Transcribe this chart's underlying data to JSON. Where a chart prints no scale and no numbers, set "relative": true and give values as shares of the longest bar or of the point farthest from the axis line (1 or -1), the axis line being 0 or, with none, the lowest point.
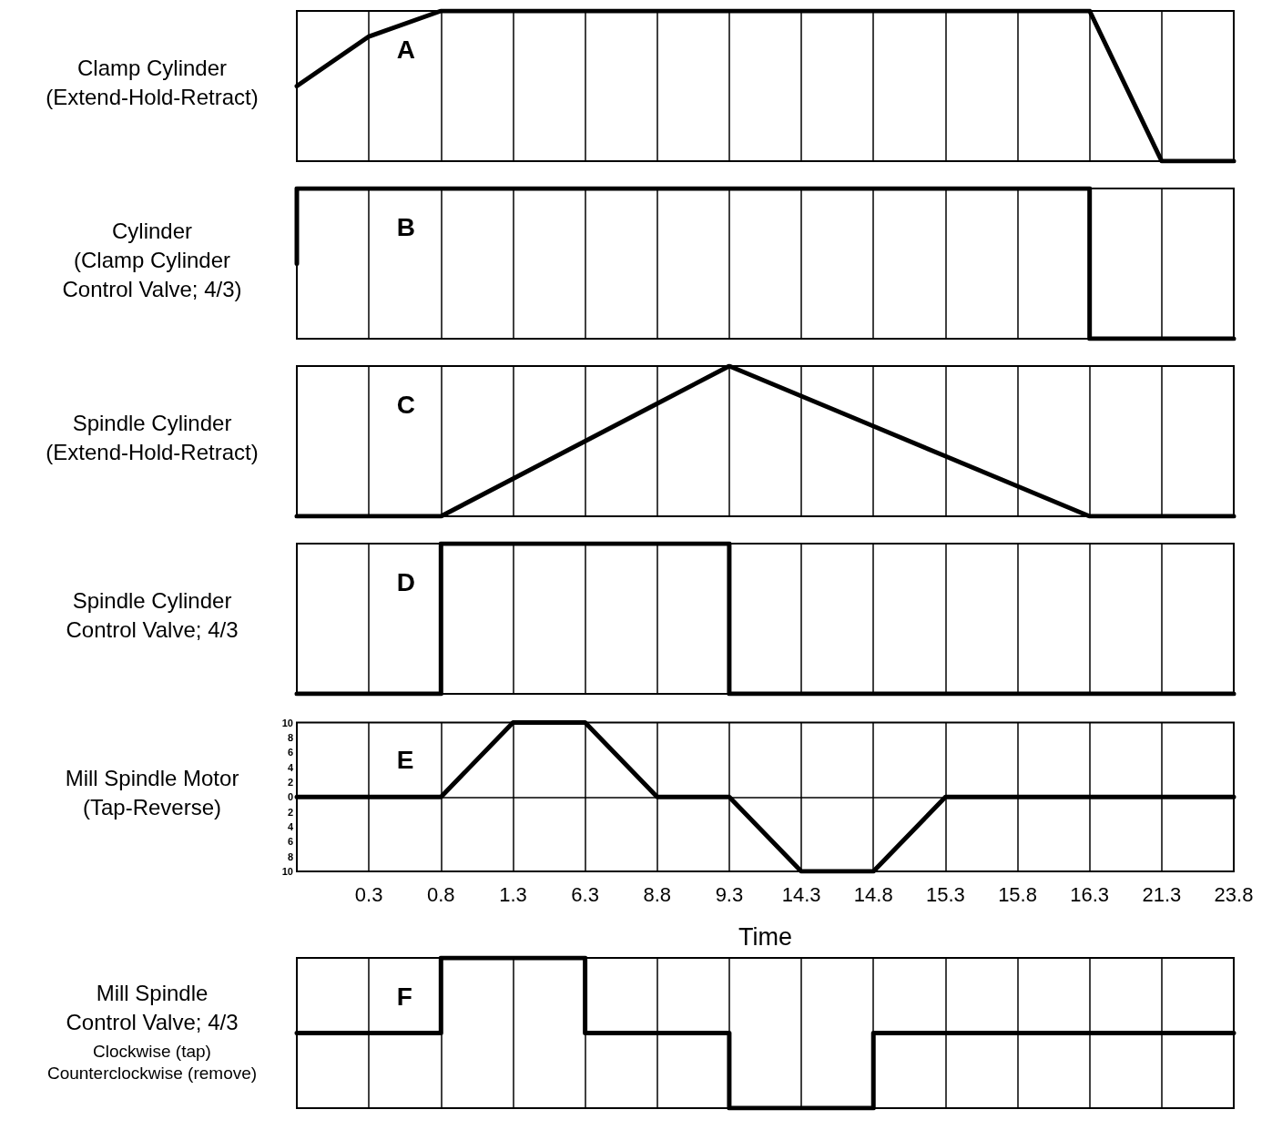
{
  "chart_data": [
    {
      "type": "line",
      "ylabel": "Clamp Cylinder\n(Extend-Hold-Retract)",
      "annotations": [
        "A"
      ],
      "relative": true,
      "grid": true,
      "tick_labels": false,
      "categories": [
        null,
        "0.3",
        "0.8",
        "1.3",
        "6.3",
        "8.8",
        "9.3",
        "14.3",
        "14.8",
        "15.3",
        "15.8",
        "16.3",
        "21.3",
        "23.8"
      ],
      "series": [
        {
          "color": "#000000",
          "values": [
            0.5,
            0.83,
            1,
            1,
            1,
            1,
            1,
            1,
            1,
            1,
            1,
            1,
            0,
            0
          ]
        }
      ]
    },
    {
      "type": "step",
      "ylabel": "Cylinder\n(Clamp Cylinder\nControl Valve; 4/3)",
      "annotations": [
        "B"
      ],
      "relative": true,
      "grid": true,
      "tick_labels": false,
      "categories": [
        null,
        "0.3",
        "0.8",
        "1.3",
        "6.3",
        "8.8",
        "9.3",
        "14.3",
        "14.8",
        "15.3",
        "15.8",
        "16.3",
        "21.3",
        "23.8"
      ],
      "series": [
        {
          "color": "#000000",
          "values": [
            0.5,
            1,
            1,
            1,
            1,
            1,
            1,
            1,
            1,
            1,
            1,
            1,
            0,
            0
          ]
        }
      ]
    },
    {
      "type": "line",
      "ylabel": "Spindle Cylinder\n(Extend-Hold-Retract)",
      "annotations": [
        "C"
      ],
      "relative": true,
      "grid": true,
      "tick_labels": false,
      "categories": [
        null,
        "0.3",
        "0.8",
        "1.3",
        "6.3",
        "8.8",
        "9.3",
        "14.3",
        "14.8",
        "15.3",
        "15.8",
        "16.3",
        "21.3",
        "23.8"
      ],
      "series": [
        {
          "color": "#000000",
          "values": [
            0,
            0,
            0,
            0.25,
            0.5,
            0.75,
            1,
            0.8,
            0.6,
            0.4,
            0.2,
            0,
            0,
            0
          ]
        }
      ]
    },
    {
      "type": "step",
      "ylabel": "Spindle Cylinder\nControl Valve; 4/3",
      "annotations": [
        "D"
      ],
      "relative": true,
      "grid": true,
      "tick_labels": false,
      "categories": [
        null,
        "0.3",
        "0.8",
        "1.3",
        "6.3",
        "8.8",
        "9.3",
        "14.3",
        "14.8",
        "15.3",
        "15.8",
        "16.3",
        "21.3",
        "23.8"
      ],
      "series": [
        {
          "color": "#000000",
          "values": [
            0,
            0,
            0,
            1,
            1,
            1,
            1,
            0,
            0,
            0,
            0,
            0,
            0,
            0
          ]
        }
      ]
    },
    {
      "type": "line",
      "ylabel": "Mill Spindle Motor\n(Tap-Reverse)",
      "xlabel": "Time",
      "annotations": [
        "E"
      ],
      "grid": "x",
      "categories": [
        null,
        "0.3",
        "0.8",
        "1.3",
        "6.3",
        "8.8",
        "9.3",
        "14.3",
        "14.8",
        "15.3",
        "15.8",
        "16.3",
        "21.3",
        "23.8"
      ],
      "ylim": [
        -10,
        10
      ],
      "yticks": [
        {
          "value": -10,
          "label": "10"
        },
        {
          "value": -8,
          "label": "8"
        },
        {
          "value": -6,
          "label": "6"
        },
        {
          "value": -4,
          "label": "4"
        },
        {
          "value": -2,
          "label": "2"
        },
        0,
        2,
        4,
        6,
        8,
        10
      ],
      "ref_lines": [
        {
          "axis": "y",
          "value": 0,
          "color": "#000000"
        }
      ],
      "series": [
        {
          "color": "#000000",
          "values": [
            0,
            0,
            0,
            10,
            10,
            0,
            0,
            -10,
            -10,
            0,
            0,
            0,
            0,
            0
          ]
        }
      ]
    },
    {
      "type": "step",
      "ylabel": "Mill Spindle\nControl Valve; 4/3",
      "annotations": [
        "F",
        "Clockwise (tap)",
        "Counterclockwise (remove)"
      ],
      "relative": true,
      "grid": true,
      "tick_labels": false,
      "categories": [
        null,
        "0.3",
        "0.8",
        "1.3",
        "6.3",
        "8.8",
        "9.3",
        "14.3",
        "14.8",
        "15.3",
        "15.8",
        "16.3",
        "21.3",
        "23.8"
      ],
      "series": [
        {
          "color": "#000000",
          "values": [
            0.5,
            0.5,
            0.5,
            1,
            1,
            0.5,
            0.5,
            0,
            0,
            0.5,
            0.5,
            0.5,
            0.5,
            0.5
          ]
        }
      ]
    }
  ]
}
